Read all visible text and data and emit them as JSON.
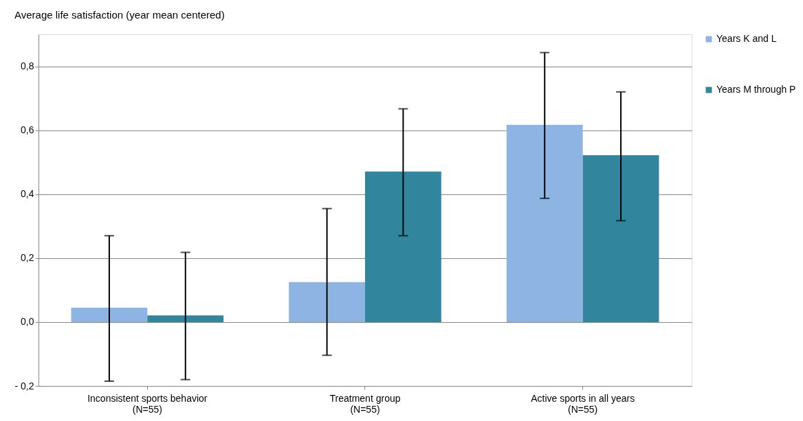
{
  "chart_data": {
    "type": "bar",
    "title": "Average life satisfaction (year mean centered)",
    "categories": [
      "Inconsistent sports behavior\n(N=55)",
      "Treatment group\n(N=55)",
      "Active sports in all years\n(N=55)"
    ],
    "series": [
      {
        "name": "Years K and L",
        "color": "#8eb4e3",
        "values": [
          0.045,
          0.125,
          0.617
        ],
        "errors": [
          [
            -0.185,
            0.27
          ],
          [
            -0.104,
            0.355
          ],
          [
            0.387,
            0.843
          ]
        ]
      },
      {
        "name": "Years M through P",
        "color": "#31859c",
        "values": [
          0.021,
          0.471,
          0.522
        ],
        "errors": [
          [
            -0.18,
            0.218
          ],
          [
            0.27,
            0.667
          ],
          [
            0.317,
            0.72
          ]
        ]
      }
    ],
    "ylim": [
      -0.2,
      0.9
    ],
    "yticks": [
      {
        "value": -0.2,
        "label": "- 0,2"
      },
      {
        "value": 0.0,
        "label": "0,0"
      },
      {
        "value": 0.2,
        "label": "0,2"
      },
      {
        "value": 0.4,
        "label": "0,4"
      },
      {
        "value": 0.6,
        "label": "0,6"
      },
      {
        "value": 0.8,
        "label": "0,8"
      }
    ],
    "grid": "y",
    "legend": "right"
  }
}
